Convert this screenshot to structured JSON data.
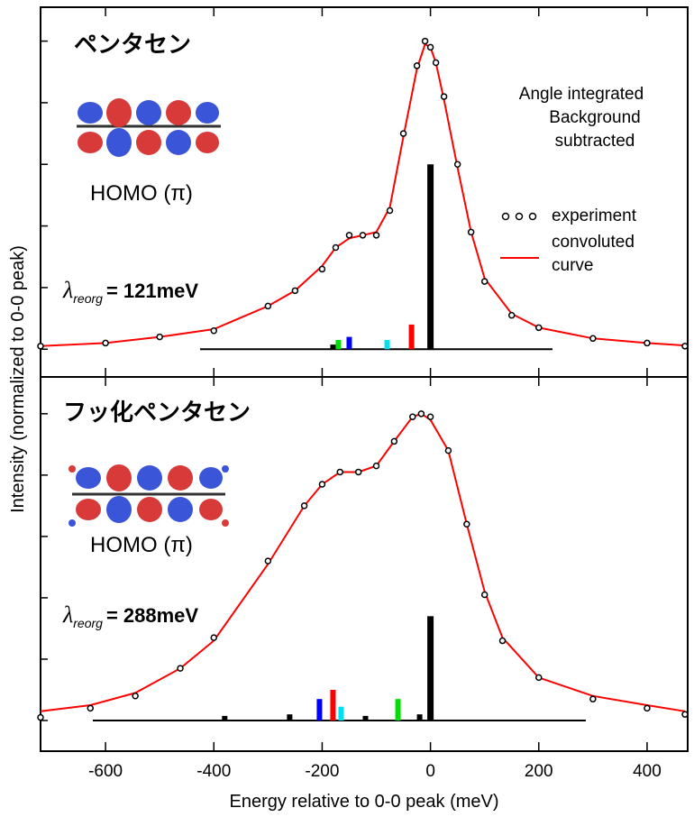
{
  "chart_data": [
    {
      "type": "line",
      "title": "ペンタセン",
      "annotations": [
        "Angle integrated",
        "Background subtracted"
      ],
      "orbital_label": "HOMO (π)",
      "lambda_label": {
        "symbol": "λ",
        "subscript": "reorg",
        "value": "= 121meV"
      },
      "ylabel": "Intensity (normalized to 0-0 peak)",
      "xlim": [
        -720,
        475
      ],
      "xticks": [
        -600,
        -400,
        -200,
        0,
        200,
        400
      ],
      "ylim": [
        -0.09,
        1.11
      ],
      "yticks": [
        0,
        0.2,
        0.4,
        0.6,
        0.8,
        1.0
      ],
      "x": [
        -720,
        -600,
        -500,
        -400,
        -300,
        -250,
        -200,
        -175,
        -150,
        -125,
        -100,
        -75,
        -50,
        -25,
        -10,
        0,
        10,
        25,
        50,
        75,
        100,
        150,
        200,
        300,
        400,
        470
      ],
      "series": [
        {
          "name": "experiment",
          "color": "#000000",
          "values": [
            0.01,
            0.02,
            0.04,
            0.06,
            0.14,
            0.19,
            0.26,
            0.33,
            0.37,
            0.37,
            0.37,
            0.45,
            0.7,
            0.92,
            1.0,
            0.98,
            0.93,
            0.82,
            0.6,
            0.38,
            0.22,
            0.11,
            0.07,
            0.035,
            0.02,
            0.01
          ]
        },
        {
          "name": "convoluted curve",
          "color": "#ff0000",
          "values": [
            0.01,
            0.02,
            0.04,
            0.065,
            0.14,
            0.19,
            0.27,
            0.33,
            0.36,
            0.37,
            0.38,
            0.46,
            0.69,
            0.91,
            0.99,
            0.98,
            0.93,
            0.81,
            0.59,
            0.38,
            0.23,
            0.115,
            0.07,
            0.035,
            0.02,
            0.012
          ]
        }
      ],
      "sticks": {
        "x": [
          -180,
          -170,
          -150,
          -80,
          -35,
          0
        ],
        "values": [
          0.015,
          0.03,
          0.04,
          0.03,
          0.08,
          0.6
        ],
        "colors": [
          "#000000",
          "#00e000",
          "#0000ff",
          "#00e0f0",
          "#ff0000",
          "#000000"
        ]
      }
    },
    {
      "type": "line",
      "title": "フッ化ペンタセン",
      "orbital_label": "HOMO (π)",
      "lambda_label": {
        "symbol": "λ",
        "subscript": "reorg",
        "value": "= 288meV"
      },
      "xlabel": "Energy relative to 0-0 peak (meV)",
      "xlim": [
        -720,
        475
      ],
      "xticks": [
        -600,
        -400,
        -200,
        0,
        200,
        400
      ],
      "ylim": [
        -0.1,
        1.12
      ],
      "yticks": [
        0,
        0.2,
        0.4,
        0.6,
        0.8,
        1.0
      ],
      "x": [
        -720,
        -628,
        -545,
        -462,
        -400,
        -300,
        -233,
        -200,
        -167,
        -133,
        -100,
        -67,
        -33,
        -17,
        0,
        33,
        67,
        100,
        133,
        200,
        300,
        400,
        470
      ],
      "series": [
        {
          "name": "experiment",
          "color": "#000000",
          "values": [
            0.01,
            0.04,
            0.08,
            0.17,
            0.27,
            0.52,
            0.7,
            0.77,
            0.81,
            0.81,
            0.83,
            0.91,
            0.99,
            1.0,
            0.99,
            0.88,
            0.64,
            0.41,
            0.26,
            0.14,
            0.07,
            0.04,
            0.02
          ]
        },
        {
          "name": "convoluted curve",
          "color": "#ff0000",
          "values": [
            0.03,
            0.05,
            0.09,
            0.17,
            0.26,
            0.51,
            0.7,
            0.77,
            0.81,
            0.81,
            0.83,
            0.91,
            0.99,
            1.0,
            0.98,
            0.88,
            0.64,
            0.42,
            0.27,
            0.14,
            0.08,
            0.05,
            0.03
          ]
        }
      ],
      "sticks": {
        "x": [
          -380,
          -260,
          -205,
          -180,
          -165,
          -120,
          -60,
          -20,
          0
        ],
        "values": [
          0.015,
          0.02,
          0.07,
          0.1,
          0.045,
          0.015,
          0.07,
          0.02,
          0.34
        ],
        "colors": [
          "#000000",
          "#000000",
          "#0000ff",
          "#ff0000",
          "#00e0f0",
          "#000000",
          "#00e000",
          "#000000",
          "#000000"
        ]
      }
    }
  ]
}
